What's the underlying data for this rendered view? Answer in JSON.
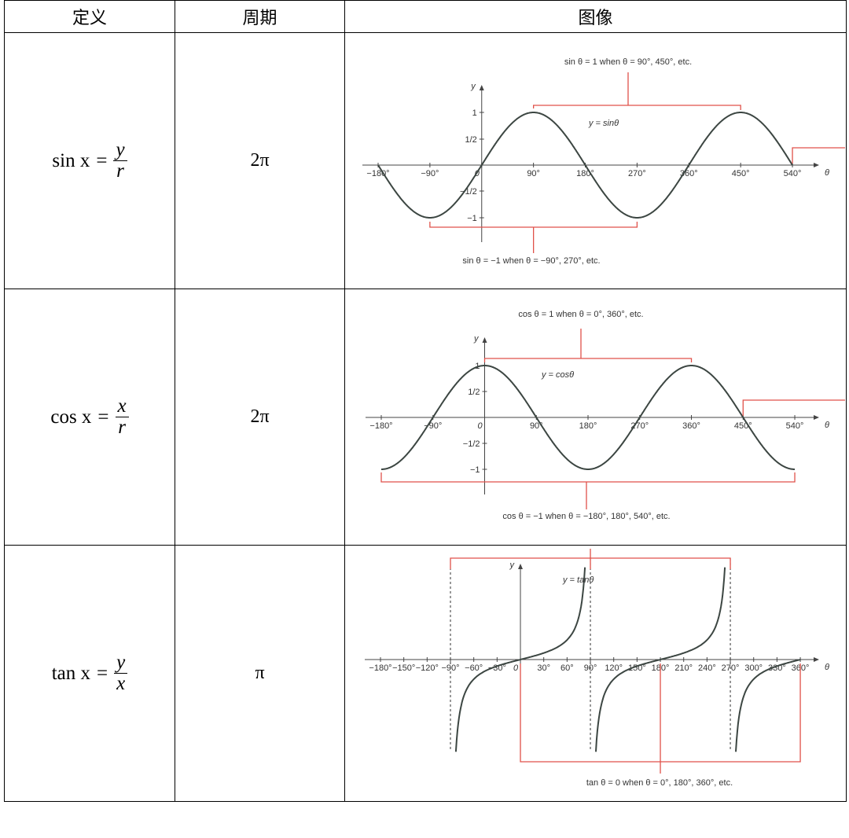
{
  "table": {
    "header": [
      "定义",
      "周期",
      "图像"
    ],
    "rows": [
      {
        "definition": {
          "lhs": "sin x",
          "eq": "=",
          "num": "y",
          "den": "r"
        },
        "period": "2π",
        "graph": {
          "y_axis": "y",
          "x_axis": "θ",
          "curve_label": "y = sinθ",
          "note_top": "sin θ = 1 when θ = 90°, 450°, etc.",
          "note_bottom": "sin θ = −1 when θ = −90°, 270°, etc.",
          "x_labels": [
            "−180°",
            "−90°",
            "0",
            "90°",
            "180°",
            "270°",
            "360°",
            "450°",
            "540°"
          ],
          "y_labels": [
            "1",
            "1/2",
            "−1/2",
            "−1"
          ]
        }
      },
      {
        "definition": {
          "lhs": "cos x",
          "eq": "=",
          "num": "x",
          "den": "r"
        },
        "period": "2π",
        "graph": {
          "y_axis": "y",
          "x_axis": "θ",
          "curve_label": "y = cosθ",
          "note_top": "cos θ = 1 when θ = 0°, 360°, etc.",
          "note_bottom": "cos θ = −1 when θ = −180°, 180°, 540°, etc.",
          "x_labels": [
            "−180°",
            "−90°",
            "0",
            "90°",
            "180°",
            "270°",
            "360°",
            "450°",
            "540°"
          ],
          "y_labels": [
            "1",
            "1/2",
            "−1/2",
            "−1"
          ]
        }
      },
      {
        "definition": {
          "lhs": "tan x",
          "eq": "=",
          "num": "y",
          "den": "x"
        },
        "period": "π",
        "graph": {
          "y_axis": "y",
          "x_axis": "θ",
          "curve_label": "y = tanθ",
          "note_bottom": "tan θ = 0 when θ = 0°, 180°, 360°, etc.",
          "x_labels": [
            "−180°",
            "−150°",
            "−120°",
            "−90°",
            "−60°",
            "−30°",
            "0",
            "30°",
            "60°",
            "90°",
            "120°",
            "150°",
            "180°",
            "210°",
            "240°",
            "270°",
            "300°",
            "330°",
            "360°"
          ]
        }
      }
    ]
  }
}
